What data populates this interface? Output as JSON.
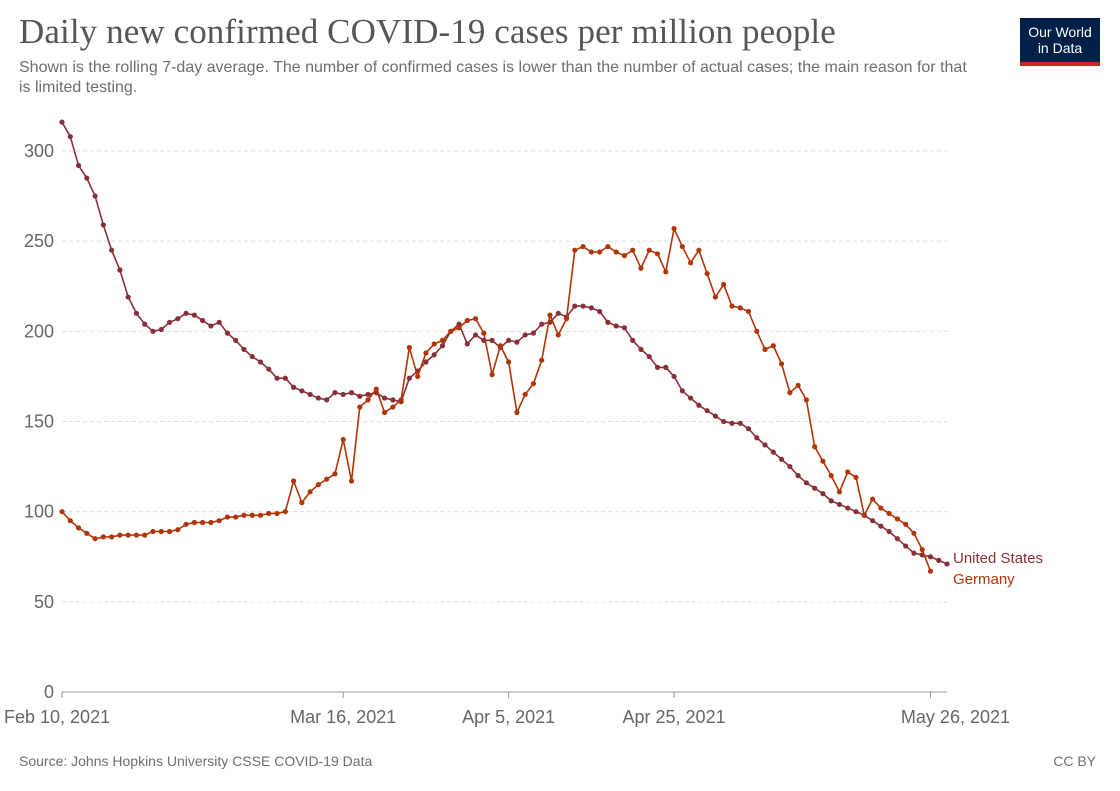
{
  "header": {
    "title": "Daily new confirmed COVID-19 cases per million people",
    "subtitle": "Shown is the rolling 7-day average. The number of confirmed cases is lower than the number of actual cases; the main reason for that is limited testing."
  },
  "logo": {
    "line1": "Our World",
    "line2": "in Data"
  },
  "footer": {
    "source": "Source: Johns Hopkins University CSSE COVID-19 Data",
    "license": "CC BY"
  },
  "chart_data": {
    "type": "line",
    "title": "Daily new confirmed COVID-19 cases per million people",
    "xlabel": "",
    "ylabel": "",
    "ylim": [
      0,
      300
    ],
    "yticks": [
      0,
      50,
      100,
      150,
      200,
      250,
      300
    ],
    "xticks": [
      {
        "day": 0,
        "label": "Feb 10, 2021"
      },
      {
        "day": 34,
        "label": "Mar 16, 2021"
      },
      {
        "day": 54,
        "label": "Apr 5, 2021"
      },
      {
        "day": 74,
        "label": "Apr 25, 2021"
      },
      {
        "day": 105,
        "label": "May 26, 2021"
      }
    ],
    "x_start_date": "Feb 10, 2021",
    "x_unit": "days since Feb 10, 2021",
    "series": [
      {
        "name": "United States",
        "color": "#883039",
        "values": [
          316,
          308,
          292,
          285,
          275,
          259,
          245,
          234,
          219,
          210,
          204,
          200,
          201,
          205,
          207,
          210,
          209,
          206,
          203,
          205,
          199,
          195,
          190,
          186,
          183,
          179,
          174,
          174,
          169,
          167,
          165,
          163,
          162,
          166,
          165,
          166,
          164,
          165,
          166,
          163,
          162,
          161,
          174,
          178,
          183,
          187,
          192,
          200,
          204,
          193,
          198,
          195,
          195,
          191,
          195,
          194,
          198,
          199,
          204,
          205,
          210,
          208,
          214,
          214,
          213,
          211,
          205,
          203,
          202,
          195,
          190,
          186,
          180,
          180,
          175,
          167,
          163,
          159,
          156,
          153,
          150,
          149,
          149,
          146,
          141,
          137,
          133,
          129,
          125,
          120,
          116,
          113,
          110,
          106,
          104,
          102,
          100,
          98,
          95,
          92,
          89,
          85,
          81,
          77,
          76,
          75,
          73,
          71
        ]
      },
      {
        "name": "Germany",
        "color": "#b13507",
        "values": [
          100,
          95,
          91,
          88,
          85,
          86,
          86,
          87,
          87,
          87,
          87,
          89,
          89,
          89,
          90,
          93,
          94,
          94,
          94,
          95,
          97,
          97,
          98,
          98,
          98,
          99,
          99,
          100,
          117,
          105,
          111,
          115,
          118,
          121,
          140,
          117,
          158,
          162,
          168,
          155,
          158,
          162,
          191,
          175,
          188,
          193,
          195,
          200,
          202,
          206,
          207,
          199,
          176,
          192,
          183,
          155,
          165,
          171,
          184,
          209,
          198,
          207,
          245,
          247,
          244,
          244,
          247,
          244,
          242,
          245,
          235,
          245,
          243,
          233,
          257,
          247,
          238,
          245,
          232,
          219,
          226,
          214,
          213,
          211,
          200,
          190,
          192,
          182,
          166,
          170,
          162,
          136,
          128,
          120,
          111,
          122,
          119,
          98,
          107,
          102,
          99,
          96,
          93,
          88,
          79,
          67
        ]
      }
    ],
    "legend": "inline-right"
  }
}
